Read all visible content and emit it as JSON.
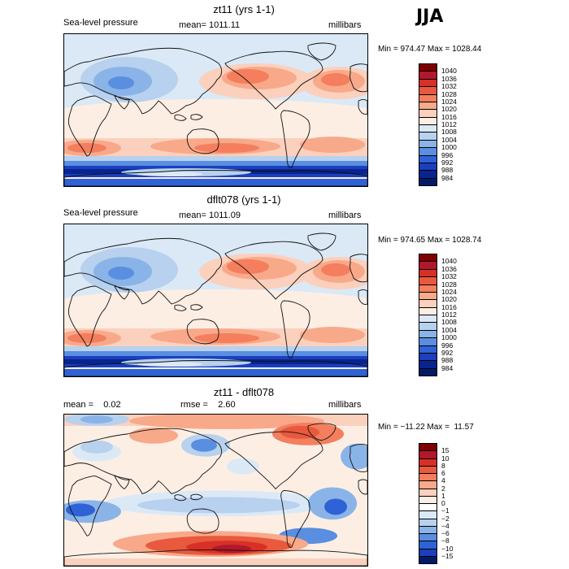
{
  "season": "JJA",
  "panels": [
    {
      "title": "zt11 (yrs 1-1)",
      "left": "Sea-level pressure",
      "middle": "mean= 1011.11",
      "right": "millibars",
      "minmax": "Min = 974.47 Max = 1028.44",
      "type": "slp1",
      "levels": [
        "1040",
        "1036",
        "1032",
        "1028",
        "1024",
        "1020",
        "1016",
        "1012",
        "1008",
        "1004",
        "1000",
        "996",
        "992",
        "988",
        "984"
      ],
      "colors": [
        "#7f0000",
        "#b2182b",
        "#d73027",
        "#e8593d",
        "#f47e5d",
        "#f8a98a",
        "#fbd0bd",
        "#fdeee4",
        "#dbe9f6",
        "#b7d1ee",
        "#8ab4e8",
        "#5a8ee0",
        "#2f62d6",
        "#1a3fbf",
        "#08248f",
        "#031b66"
      ]
    },
    {
      "title": "dflt078 (yrs 1-1)",
      "left": "Sea-level pressure",
      "middle": "mean= 1011.09",
      "right": "millibars",
      "minmax": "Min = 974.65 Max = 1028.74",
      "type": "slp2",
      "levels": [
        "1040",
        "1036",
        "1032",
        "1028",
        "1024",
        "1020",
        "1016",
        "1012",
        "1008",
        "1004",
        "1000",
        "996",
        "992",
        "988",
        "984"
      ],
      "colors": [
        "#7f0000",
        "#b2182b",
        "#d73027",
        "#e8593d",
        "#f47e5d",
        "#f8a98a",
        "#fbd0bd",
        "#fdeee4",
        "#dbe9f6",
        "#b7d1ee",
        "#8ab4e8",
        "#5a8ee0",
        "#2f62d6",
        "#1a3fbf",
        "#08248f",
        "#031b66"
      ]
    },
    {
      "title": "zt11 - dflt078",
      "left": "mean =    0.02",
      "middle": "rmse =    2.60",
      "right": "millibars",
      "minmax": "Min = −11.22 Max =  11.57",
      "type": "diff",
      "levels": [
        "15",
        "10",
        "8",
        "6",
        "4",
        "2",
        "1",
        "0",
        "−1",
        "−2",
        "−4",
        "−6",
        "−8",
        "−10",
        "−15"
      ],
      "colors": [
        "#7f0000",
        "#b2182b",
        "#d73027",
        "#e8593d",
        "#f47e5d",
        "#f8a98a",
        "#fbd0bd",
        "#fdeee4",
        "#ffffff",
        "#dbe9f6",
        "#b7d1ee",
        "#8ab4e8",
        "#5a8ee0",
        "#2f62d6",
        "#1a3fbf",
        "#031b66"
      ]
    }
  ]
}
